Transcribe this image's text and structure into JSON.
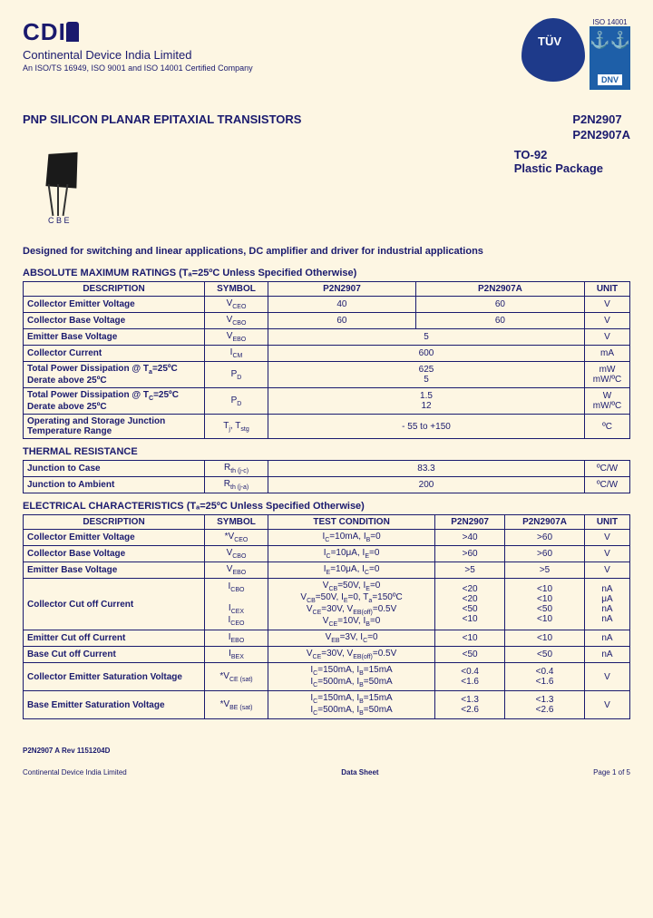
{
  "header": {
    "logo_text": "CD",
    "company_name": "Continental Device India Limited",
    "cert_line": "An ISO/TS 16949, ISO 9001 and ISO 14001 Certified Company",
    "iso_14001": "ISO 14001",
    "tuv_text": "TÜV",
    "dnv_text": "DNV"
  },
  "title": {
    "main": "PNP SILICON PLANAR EPITAXIAL TRANSISTORS",
    "parts": [
      "P2N2907",
      "P2N2907A"
    ],
    "package1": "TO-92",
    "package2": "Plastic Package",
    "leads": "C B E"
  },
  "description": "Designed for switching and linear applications, DC amplifier and driver for industrial applications",
  "sections": {
    "amr_title": "ABSOLUTE MAXIMUM RATINGS (Tₐ=25ºC Unless Specified Otherwise)",
    "thermal_title": "THERMAL RESISTANCE",
    "elec_title": "ELECTRICAL CHARACTERISTICS (Tₐ=25ºC Unless Specified Otherwise)"
  },
  "amr": {
    "headers": [
      "DESCRIPTION",
      "SYMBOL",
      "P2N2907",
      "P2N2907A",
      "UNIT"
    ],
    "rows": [
      {
        "desc": "Collector Emitter Voltage",
        "sym": "V_CEO",
        "v1": "40",
        "v2": "60",
        "unit": "V"
      },
      {
        "desc": "Collector Base Voltage",
        "sym": "V_CBO",
        "v1": "60",
        "v2": "60",
        "unit": "V"
      },
      {
        "desc": "Emitter Base Voltage",
        "sym": "V_EBO",
        "v12": "5",
        "unit": "V"
      },
      {
        "desc": "Collector Current",
        "sym": "I_CM",
        "v12": "600",
        "unit": "mA"
      },
      {
        "desc": "Total Power Dissipation @ Tₐ=25ºC\nDerate above 25ºC",
        "sym": "P_D",
        "v12a": "625",
        "v12b": "5",
        "unita": "mW",
        "unitb": "mW/ºC"
      },
      {
        "desc": "Total Power Dissipation @ T_C=25ºC\nDerate above 25ºC",
        "sym": "P_D",
        "v12a": "1.5",
        "v12b": "12",
        "unita": "W",
        "unitb": "mW/ºC"
      },
      {
        "desc": "Operating and Storage Junction Temperature Range",
        "sym": "T_j, T_stg",
        "v12": "- 55 to +150",
        "unit": "ºC"
      }
    ]
  },
  "thermal": {
    "rows": [
      {
        "desc": "Junction to Case",
        "sym": "R_th (j-c)",
        "val": "83.3",
        "unit": "ºC/W"
      },
      {
        "desc": "Junction to Ambient",
        "sym": "R_th (j-a)",
        "val": "200",
        "unit": "ºC/W"
      }
    ]
  },
  "elec": {
    "headers": [
      "DESCRIPTION",
      "SYMBOL",
      "TEST CONDITION",
      "P2N2907",
      "P2N2907A",
      "UNIT"
    ],
    "rows": [
      {
        "desc": "Collector Emitter Voltage",
        "sym": "*V_CEO",
        "cond": "I_C=10mA, I_B=0",
        "v1": ">40",
        "v2": ">60",
        "unit": "V"
      },
      {
        "desc": "Collector Base Voltage",
        "sym": "V_CBO",
        "cond": "I_C=10μA, I_E=0",
        "v1": ">60",
        "v2": ">60",
        "unit": "V"
      },
      {
        "desc": "Emitter Base Voltage",
        "sym": "V_EBO",
        "cond": "I_E=10μA, I_C=0",
        "v1": ">5",
        "v2": ">5",
        "unit": "V"
      }
    ],
    "cutoff": {
      "desc": "Collector Cut off Current",
      "syms": [
        "I_CBO",
        "",
        "I_CEX",
        "I_CEO"
      ],
      "conds": [
        "V_CB=50V, I_E=0",
        "V_CB=50V, I_E=0, Tₐ=150ºC",
        "V_CE=30V, V_EB(off)=0.5V",
        "V_CE=10V, I_B=0"
      ],
      "v1": [
        "<20",
        "<20",
        "<50",
        "<10"
      ],
      "v2": [
        "<10",
        "<10",
        "<50",
        "<10"
      ],
      "units": [
        "nA",
        "μA",
        "nA",
        "nA"
      ]
    },
    "ebase": {
      "desc": "Emitter Cut off Current",
      "sym": "I_EBO",
      "cond": "V_EB=3V, I_C=0",
      "v1": "<10",
      "v2": "<10",
      "unit": "nA"
    },
    "bbase": {
      "desc": "Base Cut off Current",
      "sym": "I_BEX",
      "cond": "V_CE=30V, V_EB(off)=0.5V",
      "v1": "<50",
      "v2": "<50",
      "unit": "nA"
    },
    "cesat": {
      "desc": "Collector Emitter Saturation Voltage",
      "sym": "*V_CE (sat)",
      "conds": [
        "I_C=150mA, I_B=15mA",
        "I_C=500mA, I_B=50mA"
      ],
      "v1": [
        "<0.4",
        "<1.6"
      ],
      "v2": [
        "<0.4",
        "<1.6"
      ],
      "unit": "V"
    },
    "besat": {
      "desc": "Base Emitter Saturation Voltage",
      "sym": "*V_BE (sat)",
      "conds": [
        "I_C=150mA, I_B=15mA",
        "I_C=500mA, I_B=50mA"
      ],
      "v1": [
        "<1.3",
        "<2.6"
      ],
      "v2": [
        "<1.3",
        "<2.6"
      ],
      "unit": "V"
    }
  },
  "footer": {
    "rev": "P2N2907 A Rev 1151204D",
    "company": "Continental Device India Limited",
    "doc": "Data Sheet",
    "page": "Page 1 of 5"
  },
  "colors": {
    "bg": "#fdf6e3",
    "text": "#1a1a6e",
    "border": "#1a1a6e"
  }
}
